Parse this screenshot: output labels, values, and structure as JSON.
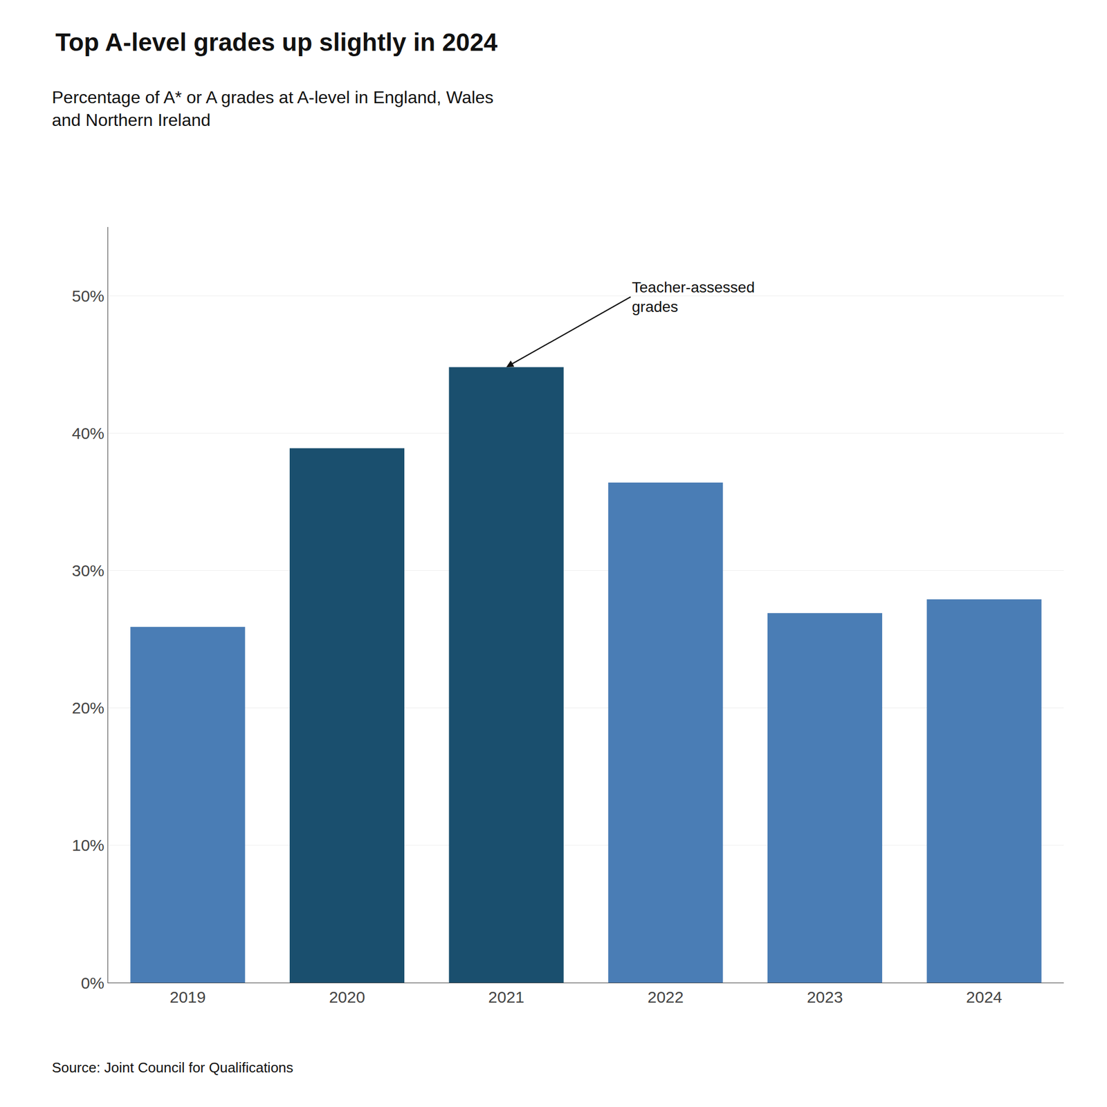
{
  "chart_data": {
    "type": "bar",
    "title": "Top A-level grades up slightly in 2024",
    "subtitle": "Percentage of A* or A grades at A-level in England, Wales\nand Northern Ireland",
    "categories": [
      "2019",
      "2020",
      "2021",
      "2022",
      "2023",
      "2024"
    ],
    "values": [
      25.9,
      38.9,
      44.8,
      36.4,
      26.9,
      27.9
    ],
    "colors": [
      "#4a7db5",
      "#1a4f6e",
      "#1a4f6e",
      "#4a7db5",
      "#4a7db5",
      "#4a7db5"
    ],
    "ylim": [
      0,
      55
    ],
    "yticks": [
      {
        "value": 0,
        "label": "0%"
      },
      {
        "value": 10,
        "label": "10%"
      },
      {
        "value": 20,
        "label": "20%"
      },
      {
        "value": 30,
        "label": "30%"
      },
      {
        "value": 40,
        "label": "40%"
      },
      {
        "value": 50,
        "label": "50%"
      }
    ],
    "grid": true,
    "annotations": [
      {
        "text": "Teacher-assessed\ngrades",
        "x": "2021"
      }
    ],
    "source": "Source: Joint Council for Qualifications"
  }
}
